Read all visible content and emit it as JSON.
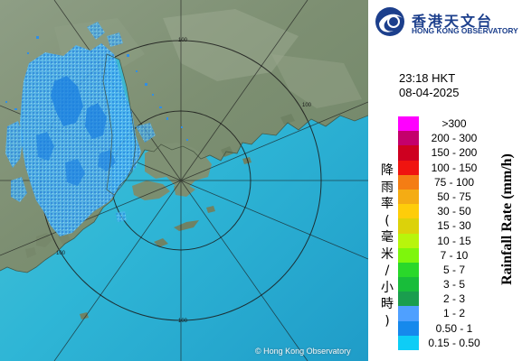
{
  "map": {
    "copyright": "© Hong Kong Observatory",
    "range_ring_labels": [
      "100",
      "100",
      "100",
      "100"
    ]
  },
  "header": {
    "logo_cn": "香港天文台",
    "logo_en": "HONG KONG OBSERVATORY",
    "time": "23:18 HKT",
    "date": "08-04-2025"
  },
  "legend": {
    "title_cn": "降雨率(毫米/小時)",
    "title_en": "Rainfall Rate (mm/h)",
    "items": [
      {
        "label": ">300",
        "color": "#ff00ff"
      },
      {
        "label": "200 - 300",
        "color": "#c4006c"
      },
      {
        "label": "150 - 200",
        "color": "#ce0020"
      },
      {
        "label": "100 - 150",
        "color": "#f01410"
      },
      {
        "label": "75 - 100",
        "color": "#f47d14"
      },
      {
        "label": "50 - 75",
        "color": "#f4ac14"
      },
      {
        "label": "30 - 50",
        "color": "#fecd0a"
      },
      {
        "label": "15 - 30",
        "color": "#dcd20a"
      },
      {
        "label": "10 - 15",
        "color": "#b8f50c"
      },
      {
        "label": "7 - 10",
        "color": "#7ef60c"
      },
      {
        "label": "5 - 7",
        "color": "#2ad82a"
      },
      {
        "label": "3 - 5",
        "color": "#18bd3a"
      },
      {
        "label": "2 - 3",
        "color": "#1a9e4e"
      },
      {
        "label": "1 - 2",
        "color": "#4fa0ff"
      },
      {
        "label": "0.50 - 1",
        "color": "#1689ec"
      },
      {
        "label": "0.15 - 0.50",
        "color": "#0ecdf6"
      }
    ]
  }
}
